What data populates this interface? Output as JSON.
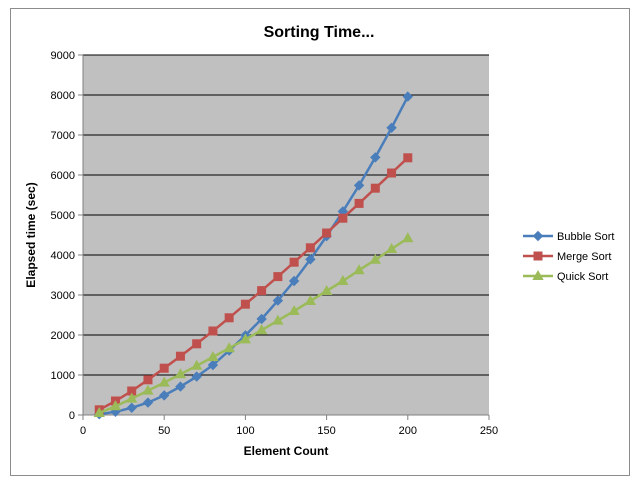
{
  "chart_data": {
    "type": "line",
    "title": "Sorting Time...",
    "xlabel": "Element Count",
    "ylabel": "Elapsed time (sec)",
    "xlim": [
      0,
      250
    ],
    "ylim": [
      0,
      9000
    ],
    "xticks": [
      0,
      50,
      100,
      150,
      200,
      250
    ],
    "yticks": [
      0,
      1000,
      2000,
      3000,
      4000,
      5000,
      6000,
      7000,
      8000,
      9000
    ],
    "grid": "horizontal",
    "plot_background": "#c0c0c0",
    "legend": "right",
    "x": [
      10,
      20,
      30,
      40,
      50,
      60,
      70,
      80,
      90,
      100,
      110,
      120,
      130,
      140,
      150,
      160,
      170,
      180,
      190,
      200
    ],
    "series": [
      {
        "name": "Bubble Sort",
        "color": "#4a7ebb",
        "marker": "diamond",
        "values": [
          20,
          80,
          180,
          310,
          490,
          710,
          960,
          1250,
          1610,
          1990,
          2400,
          2860,
          3350,
          3890,
          4470,
          5090,
          5740,
          6440,
          7180,
          7960
        ]
      },
      {
        "name": "Merge Sort",
        "color": "#c0504d",
        "marker": "square",
        "values": [
          130,
          350,
          600,
          880,
          1170,
          1470,
          1780,
          2100,
          2430,
          2770,
          3110,
          3460,
          3820,
          4180,
          4550,
          4920,
          5290,
          5670,
          6050,
          6430
        ]
      },
      {
        "name": "Quick Sort",
        "color": "#9bbb59",
        "marker": "triangle",
        "values": [
          50,
          220,
          410,
          610,
          810,
          1020,
          1230,
          1450,
          1670,
          1890,
          2120,
          2360,
          2600,
          2850,
          3100,
          3350,
          3620,
          3880,
          4150,
          4420
        ]
      }
    ]
  }
}
